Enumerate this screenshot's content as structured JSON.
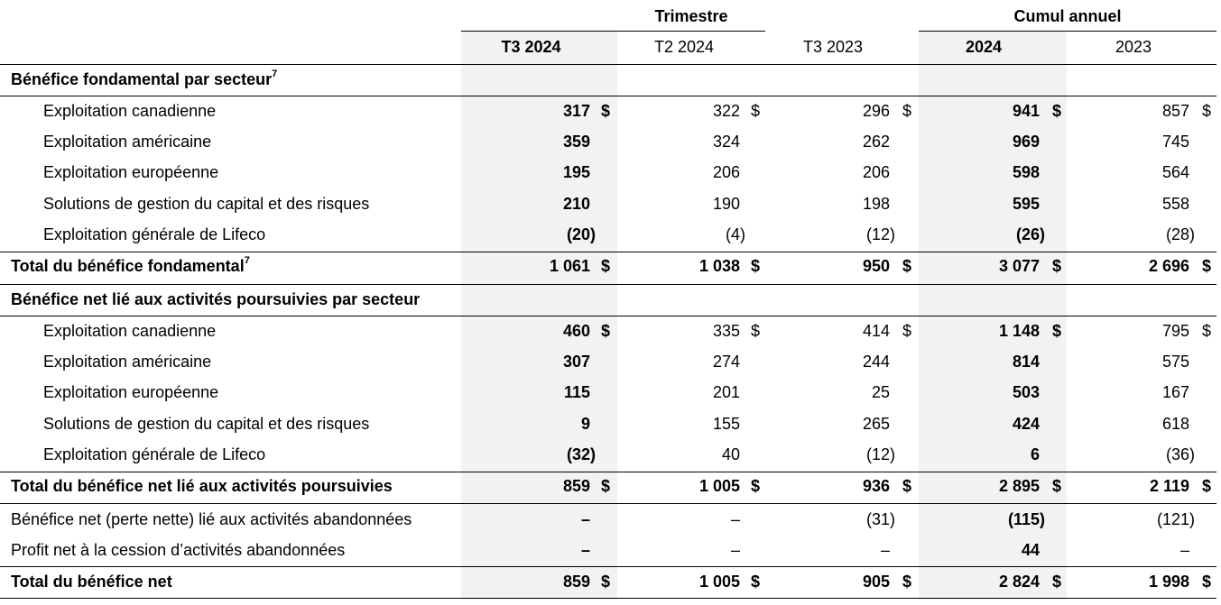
{
  "header": {
    "group_quarter": "Trimestre",
    "group_ytd": "Cumul annuel",
    "columns": [
      "T3 2024",
      "T2 2024",
      "T3 2023",
      "2024",
      "2023"
    ]
  },
  "sections": {
    "core_title": "Bénéfice fondamental par secteur",
    "core_title_sup": "7",
    "core_total_label": "Total du bénéfice fondamental",
    "core_total_sup": "7",
    "net_title": "Bénéfice net lié aux activités poursuivies par secteur",
    "net_total_label": "Total du bénéfice net lié aux activités poursuivies",
    "grand_total_label": "Total du bénéfice net"
  },
  "currency": "$",
  "rows": [
    {
      "label": "Exploitation canadienne",
      "values": [
        "317",
        "322",
        "296",
        "941",
        "857"
      ]
    },
    {
      "label": "Exploitation américaine",
      "values": [
        "359",
        "324",
        "262",
        "969",
        "745"
      ]
    },
    {
      "label": "Exploitation européenne",
      "values": [
        "195",
        "206",
        "206",
        "598",
        "564"
      ]
    },
    {
      "label": "Solutions de gestion du capital et des risques",
      "values": [
        "210",
        "190",
        "198",
        "595",
        "558"
      ]
    },
    {
      "label": "Exploitation générale de Lifeco",
      "values": [
        "(20)",
        "(4)",
        "(12)",
        "(26)",
        "(28)"
      ]
    },
    {
      "label": "",
      "values": [
        "1 061",
        "1 038",
        "950",
        "3 077",
        "2 696"
      ]
    },
    {
      "label": "Exploitation canadienne",
      "values": [
        "460",
        "335",
        "414",
        "1 148",
        "795"
      ]
    },
    {
      "label": "Exploitation américaine",
      "values": [
        "307",
        "274",
        "244",
        "814",
        "575"
      ]
    },
    {
      "label": "Exploitation européenne",
      "values": [
        "115",
        "201",
        "25",
        "503",
        "167"
      ]
    },
    {
      "label": "Solutions de gestion du capital et des risques",
      "values": [
        "9",
        "155",
        "265",
        "424",
        "618"
      ]
    },
    {
      "label": "Exploitation générale de Lifeco",
      "values": [
        "(32)",
        "40",
        "(12)",
        "6",
        "(36)"
      ]
    },
    {
      "label": "",
      "values": [
        "859",
        "1 005",
        "936",
        "2 895",
        "2 119"
      ]
    },
    {
      "label": "Bénéfice net (perte nette) lié aux activités abandonnées",
      "values": [
        "–",
        "–",
        "(31)",
        "(115)",
        "(121)"
      ]
    },
    {
      "label": "Profit net à la cession d’activités abandonnées",
      "values": [
        "–",
        "–",
        "–",
        "44",
        "–"
      ]
    },
    {
      "label": "",
      "values": [
        "859",
        "1 005",
        "905",
        "2 824",
        "1 998"
      ]
    }
  ]
}
